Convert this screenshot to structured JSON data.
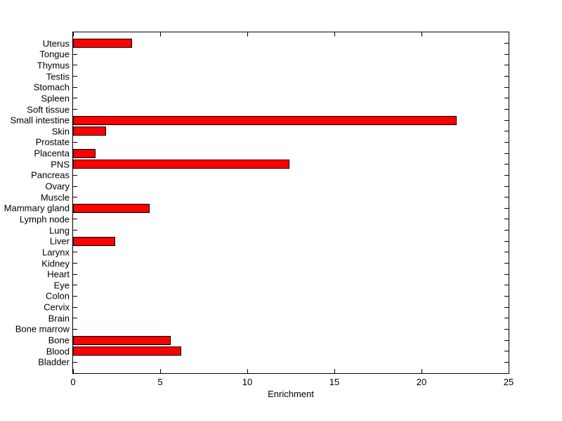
{
  "chart_data": {
    "type": "bar",
    "orientation": "horizontal",
    "title": "",
    "xlabel": "Enrichment",
    "ylabel": "",
    "categories": [
      "Uterus",
      "Tongue",
      "Thymus",
      "Testis",
      "Stomach",
      "Spleen",
      "Soft tissue",
      "Small intestine",
      "Skin",
      "Prostate",
      "Placenta",
      "PNS",
      "Pancreas",
      "Ovary",
      "Muscle",
      "Mammary gland",
      "Lymph node",
      "Lung",
      "Liver",
      "Larynx",
      "Kidney",
      "Heart",
      "Eye",
      "Colon",
      "Cervix",
      "Brain",
      "Bone marrow",
      "Bone",
      "Blood",
      "Bladder"
    ],
    "values": [
      3.4,
      0,
      0,
      0,
      0,
      0,
      0,
      22,
      1.9,
      0,
      1.3,
      12.4,
      0,
      0,
      0,
      4.4,
      0,
      0,
      2.4,
      0,
      0,
      0,
      0,
      0,
      0,
      0,
      0,
      5.6,
      6.2,
      0
    ],
    "xlim": [
      0,
      25
    ],
    "xticks": [
      0,
      5,
      10,
      15,
      20,
      25
    ],
    "grid": false,
    "legend": "none",
    "colors": {
      "bar_fill": "#ff0000",
      "bar_edge": "#000000",
      "axis": "#000000",
      "text": "#000000",
      "background": "#ffffff"
    }
  }
}
